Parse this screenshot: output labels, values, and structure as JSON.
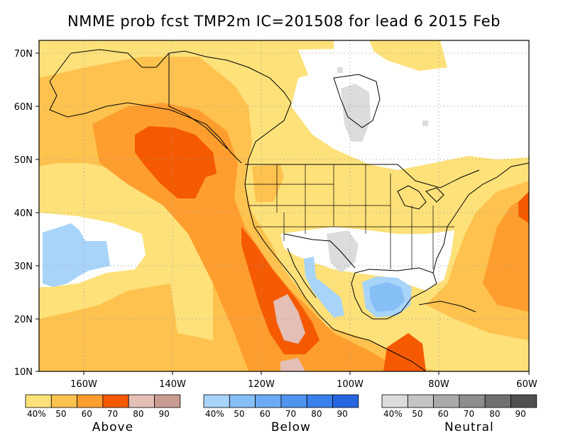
{
  "title": "NMME prob fcst TMP2m IC=201508 for lead 6 2015 Feb",
  "lat_ticks": [
    "70N",
    "60N",
    "50N",
    "40N",
    "30N",
    "20N",
    "10N"
  ],
  "lon_ticks": [
    "160W",
    "140W",
    "120W",
    "100W",
    "80W",
    "60W"
  ],
  "legend": [
    {
      "name": "Above",
      "labels": [
        "40%",
        "50",
        "60",
        "70",
        "80",
        "90"
      ],
      "colors": [
        "#ffe17a",
        "#ffc24f",
        "#ff9e2e",
        "#f55a00",
        "#e3bfb6",
        "#c99c92"
      ]
    },
    {
      "name": "Below",
      "labels": [
        "40%",
        "50",
        "60",
        "70",
        "80",
        "90"
      ],
      "colors": [
        "#a8d4fa",
        "#86bff5",
        "#6aabf4",
        "#4f94ef",
        "#3a80ea",
        "#2866e0"
      ]
    },
    {
      "name": "Neutral",
      "labels": [
        "40%",
        "50",
        "60",
        "70",
        "80",
        "90"
      ],
      "colors": [
        "#dcdcdc",
        "#c4c4c4",
        "#aaaaaa",
        "#8e8e8e",
        "#707070",
        "#505050"
      ]
    }
  ],
  "colors": {
    "above_40": "#ffe17a",
    "above_50": "#ffc24f",
    "above_60": "#ff9e2e",
    "above_70": "#f55a00",
    "above_80": "#e3bfb6",
    "below_40": "#a8d4fa",
    "below_50": "#86bff5",
    "below_60": "#6aabf4",
    "neutral_40": "#dcdcdc",
    "neutral_50": "#c4c4c4"
  }
}
